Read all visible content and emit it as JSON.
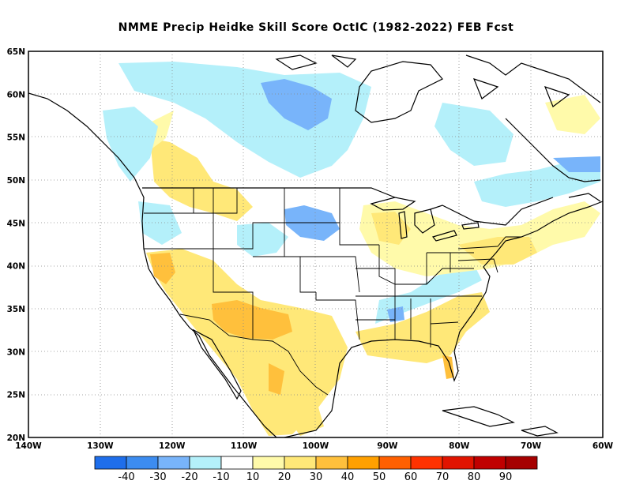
{
  "title": "NMME Precip Heidke Skill Score OctIC (1982-2022) FEB Fcst",
  "map": {
    "lat_ticks": [
      "65N",
      "60N",
      "55N",
      "50N",
      "45N",
      "40N",
      "35N",
      "30N",
      "25N",
      "20N"
    ],
    "lon_ticks": [
      "140W",
      "130W",
      "120W",
      "110W",
      "100W",
      "90W",
      "80W",
      "70W",
      "60W"
    ],
    "lat_range": [
      20,
      65
    ],
    "lon_range": [
      -140,
      -60
    ],
    "grid": true
  },
  "colorbar": {
    "labels": [
      "-40",
      "-30",
      "-20",
      "-10",
      "10",
      "20",
      "30",
      "40",
      "50",
      "60",
      "70",
      "80",
      "90"
    ],
    "colors": [
      "#1e6eeb",
      "#3c8cf0",
      "#78b4fa",
      "#b4f0fa",
      "#ffffff",
      "#fffaaa",
      "#ffe878",
      "#ffc03c",
      "#ffa000",
      "#ff6000",
      "#ff3200",
      "#e11400",
      "#c00000",
      "#a50000"
    ]
  },
  "colors": {
    "land_outline": "#000000",
    "grid": "#888888",
    "frame": "#000000"
  }
}
